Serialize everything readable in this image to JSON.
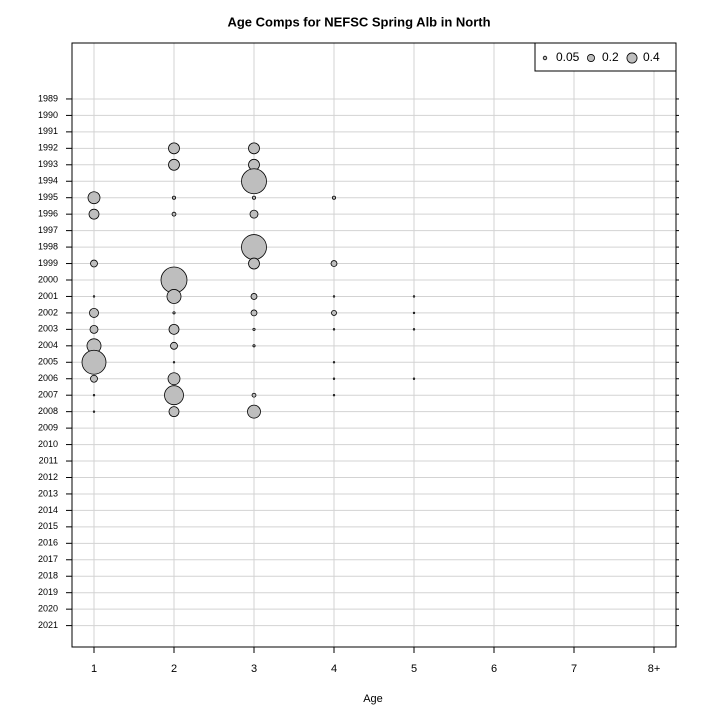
{
  "chart_data": {
    "type": "bubble",
    "title": "Age Comps for NEFSC Spring Alb in North",
    "x_label": "Age",
    "xlim": [
      0.725,
      8.275
    ],
    "xticks": [
      1,
      2,
      3,
      4,
      5,
      6,
      7,
      {
        "value": 8,
        "label": "8+"
      }
    ],
    "ylim": [
      1985.6,
      2022.3
    ],
    "y_reversed": true,
    "yticks": [
      1989,
      1990,
      1991,
      1992,
      1993,
      1994,
      1995,
      1996,
      1997,
      1998,
      1999,
      2000,
      2001,
      2002,
      2003,
      2004,
      2005,
      2006,
      2007,
      2008,
      2009,
      2010,
      2011,
      2012,
      2013,
      2014,
      2015,
      2016,
      2017,
      2018,
      2019,
      2020,
      2021
    ],
    "grid": true,
    "color": "#bebebe",
    "x": [
      1,
      1,
      1,
      1,
      1,
      1,
      1,
      1,
      1,
      1,
      1,
      2,
      2,
      2,
      2,
      2,
      2,
      2,
      2,
      2,
      2,
      2,
      2,
      2,
      3,
      3,
      3,
      3,
      3,
      3,
      3,
      3,
      3,
      3,
      3,
      3,
      3,
      4,
      4,
      4,
      4,
      4,
      4,
      4,
      4,
      5,
      5,
      5,
      5
    ],
    "y": [
      1995,
      1996,
      1999,
      2001,
      2002,
      2003,
      2004,
      2005,
      2006,
      2007,
      2008,
      1992,
      1993,
      1995,
      1996,
      2000,
      2001,
      2002,
      2003,
      2004,
      2005,
      2006,
      2007,
      2008,
      1992,
      1993,
      1994,
      1995,
      1996,
      1998,
      1999,
      2001,
      2002,
      2003,
      2004,
      2007,
      2008,
      1995,
      1999,
      2001,
      2002,
      2003,
      2005,
      2006,
      2007,
      2001,
      2002,
      2003,
      2006
    ],
    "sizes": [
      0.56,
      0.39,
      0.19,
      0.01,
      0.32,
      0.25,
      0.77,
      2.25,
      0.19,
      0.01,
      0.01,
      0.47,
      0.47,
      0.04,
      0.06,
      2.64,
      0.77,
      0.02,
      0.39,
      0.19,
      0.01,
      0.56,
      1.41,
      0.39,
      0.47,
      0.47,
      2.44,
      0.04,
      0.25,
      2.44,
      0.47,
      0.14,
      0.14,
      0.02,
      0.02,
      0.06,
      0.66,
      0.04,
      0.14,
      0.01,
      0.1,
      0.01,
      0.01,
      0.01,
      0.01,
      0.01,
      0.01,
      0.01,
      0.01
    ],
    "legend": {
      "position": "top-right",
      "values": [
        0.05,
        0.2,
        0.4
      ]
    }
  }
}
